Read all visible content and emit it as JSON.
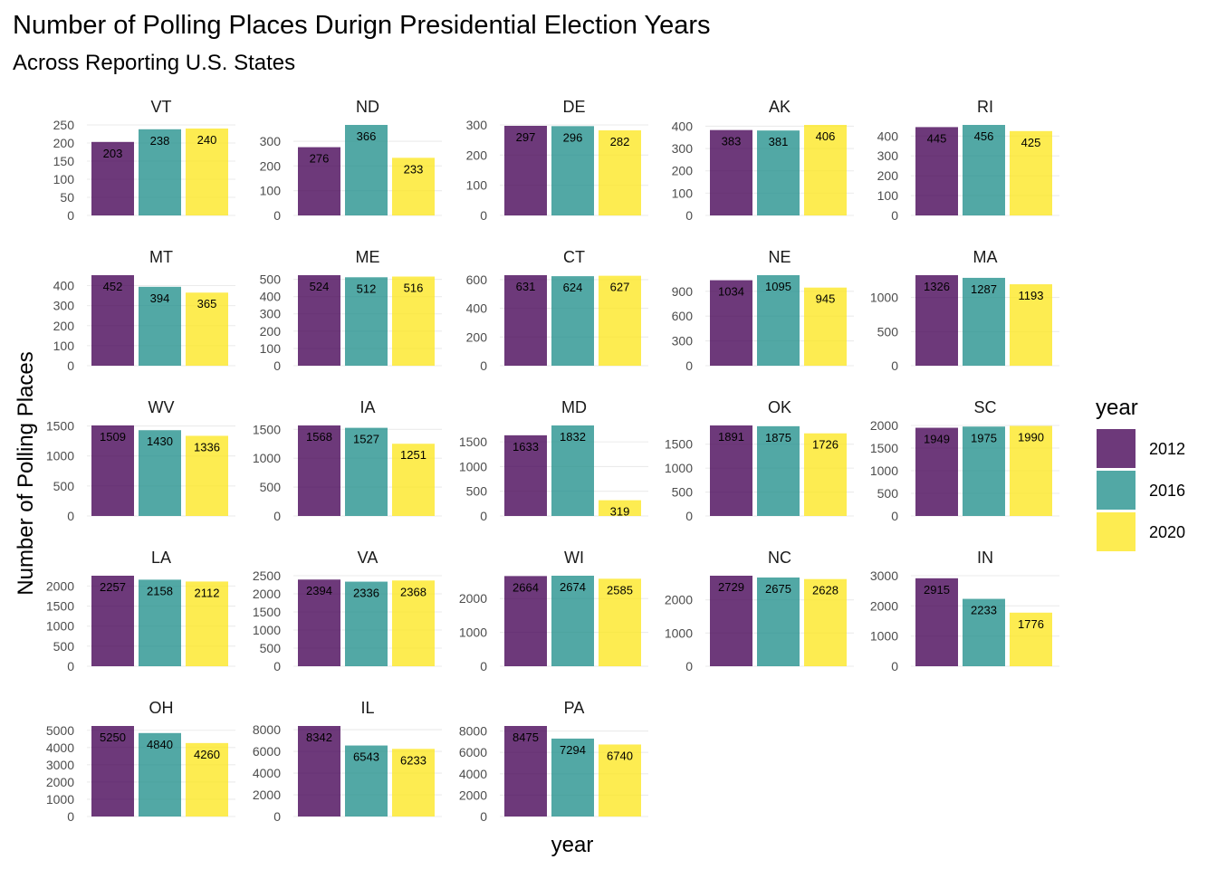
{
  "chart_data": {
    "type": "bar",
    "title": "Number of Polling Places Durign Presidential Election Years",
    "subtitle": "Across Reporting U.S. States",
    "xlabel": "year",
    "ylabel": "Number of Polling Places",
    "legend": {
      "title": "year",
      "position": "right"
    },
    "series": [
      {
        "name": "2012",
        "color": "#440154"
      },
      {
        "name": "2016",
        "color": "#21908C"
      },
      {
        "name": "2020",
        "color": "#FDE725"
      }
    ],
    "grid": true,
    "facets": [
      {
        "state": "VT",
        "values": [
          203,
          238,
          240
        ],
        "yticks": [
          0,
          50,
          100,
          150,
          200,
          250
        ]
      },
      {
        "state": "ND",
        "values": [
          276,
          366,
          233
        ],
        "yticks": [
          0,
          100,
          200,
          300
        ]
      },
      {
        "state": "DE",
        "values": [
          297,
          296,
          282
        ],
        "yticks": [
          0,
          100,
          200,
          300
        ]
      },
      {
        "state": "AK",
        "values": [
          383,
          381,
          406
        ],
        "yticks": [
          0,
          100,
          200,
          300,
          400
        ]
      },
      {
        "state": "RI",
        "values": [
          445,
          456,
          425
        ],
        "yticks": [
          0,
          100,
          200,
          300,
          400
        ]
      },
      {
        "state": "MT",
        "values": [
          452,
          394,
          365
        ],
        "yticks": [
          0,
          100,
          200,
          300,
          400
        ]
      },
      {
        "state": "ME",
        "values": [
          524,
          512,
          516
        ],
        "yticks": [
          0,
          100,
          200,
          300,
          400,
          500
        ]
      },
      {
        "state": "CT",
        "values": [
          631,
          624,
          627
        ],
        "yticks": [
          0,
          200,
          400,
          600
        ]
      },
      {
        "state": "NE",
        "values": [
          1034,
          1095,
          945
        ],
        "yticks": [
          0,
          300,
          600,
          900
        ]
      },
      {
        "state": "MA",
        "values": [
          1326,
          1287,
          1193
        ],
        "yticks": [
          0,
          500,
          1000
        ]
      },
      {
        "state": "WV",
        "values": [
          1509,
          1430,
          1336
        ],
        "yticks": [
          0,
          500,
          1000,
          1500
        ]
      },
      {
        "state": "IA",
        "values": [
          1568,
          1527,
          1251
        ],
        "yticks": [
          0,
          500,
          1000,
          1500
        ]
      },
      {
        "state": "MD",
        "values": [
          1633,
          1832,
          319
        ],
        "yticks": [
          0,
          500,
          1000,
          1500
        ]
      },
      {
        "state": "OK",
        "values": [
          1891,
          1875,
          1726
        ],
        "yticks": [
          0,
          500,
          1000,
          1500
        ]
      },
      {
        "state": "SC",
        "values": [
          1949,
          1975,
          1990
        ],
        "yticks": [
          0,
          500,
          1000,
          1500,
          2000
        ]
      },
      {
        "state": "LA",
        "values": [
          2257,
          2158,
          2112
        ],
        "yticks": [
          0,
          500,
          1000,
          1500,
          2000
        ]
      },
      {
        "state": "VA",
        "values": [
          2394,
          2336,
          2368
        ],
        "yticks": [
          0,
          500,
          1000,
          1500,
          2000,
          2500
        ]
      },
      {
        "state": "WI",
        "values": [
          2664,
          2674,
          2585
        ],
        "yticks": [
          0,
          1000,
          2000
        ]
      },
      {
        "state": "NC",
        "values": [
          2729,
          2675,
          2628
        ],
        "yticks": [
          0,
          1000,
          2000
        ]
      },
      {
        "state": "IN",
        "values": [
          2915,
          2233,
          1776
        ],
        "yticks": [
          0,
          1000,
          2000,
          3000
        ]
      },
      {
        "state": "OH",
        "values": [
          5250,
          4840,
          4260
        ],
        "yticks": [
          0,
          1000,
          2000,
          3000,
          4000,
          5000
        ]
      },
      {
        "state": "IL",
        "values": [
          8342,
          6543,
          6233
        ],
        "yticks": [
          0,
          2000,
          4000,
          6000,
          8000
        ]
      },
      {
        "state": "PA",
        "values": [
          8475,
          7294,
          6740
        ],
        "yticks": [
          0,
          2000,
          4000,
          6000,
          8000
        ]
      }
    ]
  }
}
